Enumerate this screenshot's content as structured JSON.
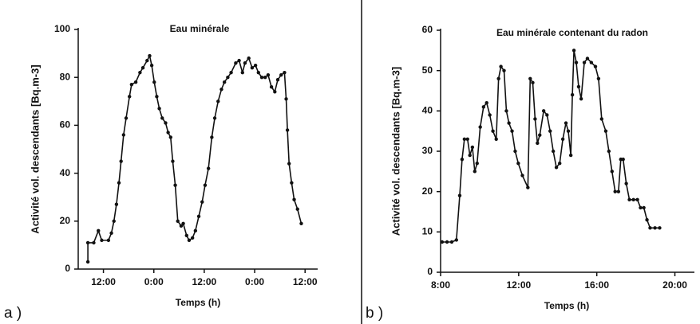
{
  "chart_data": [
    {
      "type": "line",
      "title": "Eau minérale",
      "xlabel": "Temps (h)",
      "ylabel": "Activité vol. descendants [Bq.m-3]",
      "panel_label": "a )",
      "xlim": [
        6,
        63
      ],
      "ylim": [
        0,
        100
      ],
      "xticks": [
        {
          "value": 12,
          "label": "12:00"
        },
        {
          "value": 24,
          "label": "0:00"
        },
        {
          "value": 36,
          "label": "12:00"
        },
        {
          "value": 48,
          "label": "0:00"
        },
        {
          "value": 60,
          "label": "12:00"
        }
      ],
      "yticks": [
        0,
        20,
        40,
        60,
        80,
        100
      ],
      "x": [
        8.3,
        8.3,
        9.7,
        10.8,
        11.6,
        13.2,
        13.9,
        14.5,
        15.1,
        15.7,
        16.2,
        16.8,
        17.4,
        18.2,
        18.7,
        19.7,
        20.7,
        21.4,
        22.4,
        23.0,
        23.5,
        24.1,
        24.7,
        25.3,
        26.0,
        26.8,
        27.4,
        28.0,
        28.5,
        29.1,
        29.7,
        30.5,
        31.0,
        31.8,
        32.4,
        33.2,
        33.9,
        34.7,
        35.5,
        36.2,
        37.0,
        37.8,
        38.5,
        39.3,
        40.1,
        40.8,
        41.6,
        42.4,
        43.5,
        44.3,
        45.1,
        45.7,
        46.6,
        47.4,
        48.2,
        48.9,
        49.7,
        50.5,
        51.2,
        52.0,
        52.8,
        53.5,
        54.3,
        55.1,
        55.5,
        55.8,
        56.2,
        56.8,
        57.4,
        58.2,
        59.1
      ],
      "series": [
        {
          "color": "#111111",
          "values": [
            3,
            11,
            11,
            16,
            12,
            12,
            15,
            20,
            27,
            36,
            45,
            56,
            63,
            72,
            77,
            78,
            82,
            84,
            87,
            89,
            85,
            78,
            72,
            67,
            63,
            61,
            57,
            55,
            45,
            35,
            20,
            18,
            19,
            14,
            12,
            13,
            16,
            22,
            28,
            35,
            42,
            55,
            63,
            70,
            75,
            78,
            80,
            82,
            86,
            87,
            82,
            86,
            88,
            84,
            85,
            82,
            80,
            80,
            81,
            76,
            74,
            79,
            81,
            82,
            71,
            58,
            44,
            36,
            29,
            25,
            19
          ]
        }
      ]
    },
    {
      "type": "line",
      "title": "Eau minérale contenant du radon",
      "xlabel": "Temps (h)",
      "ylabel": "Activité vol. descendants [Bq.m-3]",
      "panel_label": "b )",
      "xlim": [
        8,
        21
      ],
      "ylim": [
        0,
        60
      ],
      "xticks": [
        {
          "value": 8,
          "label": "8:00"
        },
        {
          "value": 12,
          "label": "12:00"
        },
        {
          "value": 16,
          "label": "16:00"
        },
        {
          "value": 20,
          "label": "20:00"
        }
      ],
      "yticks": [
        0,
        10,
        20,
        30,
        40,
        50,
        60
      ],
      "x": [
        8.08,
        8.33,
        8.57,
        8.81,
        8.98,
        9.1,
        9.22,
        9.38,
        9.5,
        9.63,
        9.75,
        9.87,
        10.03,
        10.2,
        10.36,
        10.52,
        10.68,
        10.85,
        10.97,
        11.09,
        11.25,
        11.37,
        11.5,
        11.66,
        11.82,
        11.98,
        12.19,
        12.47,
        12.59,
        12.72,
        12.84,
        12.96,
        13.08,
        13.28,
        13.45,
        13.61,
        13.77,
        13.93,
        14.1,
        14.26,
        14.42,
        14.54,
        14.67,
        14.75,
        14.83,
        14.95,
        15.07,
        15.2,
        15.36,
        15.52,
        15.72,
        15.93,
        16.09,
        16.25,
        16.46,
        16.62,
        16.78,
        16.94,
        17.11,
        17.23,
        17.35,
        17.51,
        17.67,
        17.88,
        18.08,
        18.24,
        18.41,
        18.57,
        18.73,
        18.98,
        19.22
      ],
      "series": [
        {
          "color": "#111111",
          "values": [
            7.5,
            7.5,
            7.5,
            8,
            19,
            28,
            33,
            33,
            29,
            31,
            25,
            27,
            36,
            41,
            42,
            39,
            35,
            33,
            48,
            51,
            50,
            40,
            37,
            35,
            30,
            27,
            24,
            21,
            48,
            47,
            38,
            32,
            34,
            40,
            39,
            35,
            30,
            26,
            27,
            33,
            37,
            35,
            29,
            44,
            55,
            52,
            46,
            43,
            52,
            53,
            52,
            51,
            48,
            38,
            35,
            30,
            25,
            20,
            20,
            28,
            28,
            22,
            18,
            18,
            18,
            16,
            16,
            13,
            11,
            11,
            11
          ]
        }
      ]
    }
  ]
}
